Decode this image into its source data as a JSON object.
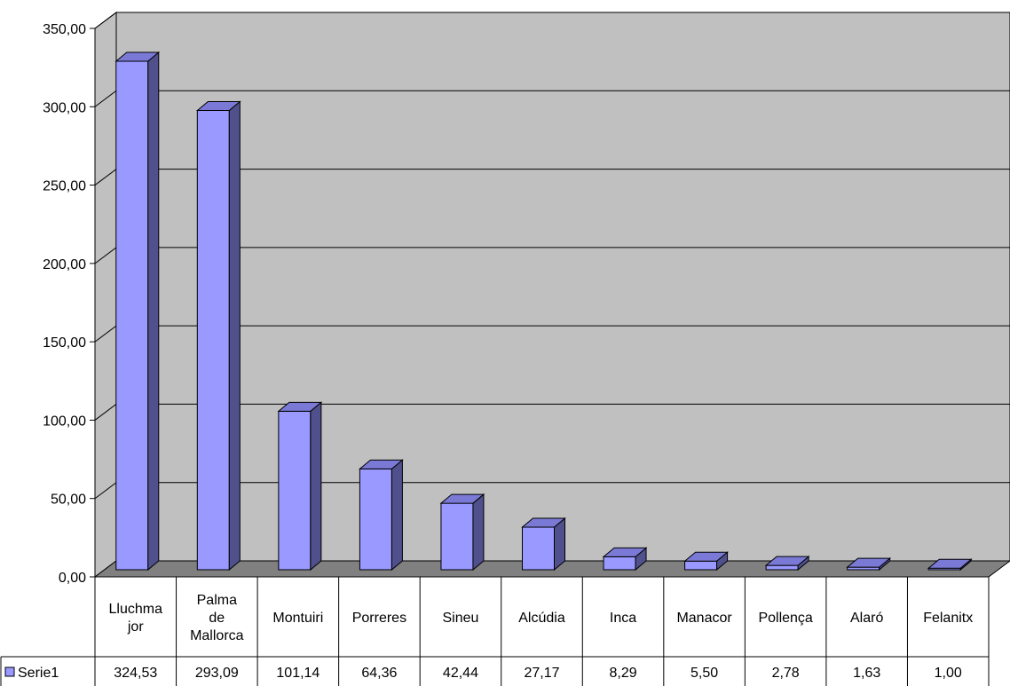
{
  "chart_data": {
    "type": "bar",
    "style": "3d-column",
    "categories": [
      [
        "Lluchma",
        "jor"
      ],
      [
        "Palma",
        "de",
        "Mallorca"
      ],
      [
        "Montuiri"
      ],
      [
        "Porreres"
      ],
      [
        "Sineu"
      ],
      [
        "Alcúdia"
      ],
      [
        "Inca"
      ],
      [
        "Manacor"
      ],
      [
        "Pollença"
      ],
      [
        "Alaró"
      ],
      [
        "Felanitx"
      ]
    ],
    "series": [
      {
        "name": "Serie1",
        "values": [
          324.53,
          293.09,
          101.14,
          64.36,
          42.44,
          27.17,
          8.29,
          5.5,
          2.78,
          1.63,
          1.0
        ],
        "value_labels": [
          "324,53",
          "293,09",
          "101,14",
          "64,36",
          "42,44",
          "27,17",
          "8,29",
          "5,50",
          "2,78",
          "1,63",
          "1,00"
        ]
      }
    ],
    "yticks": [
      "0,00",
      "50,00",
      "100,00",
      "150,00",
      "200,00",
      "250,00",
      "300,00",
      "350,00"
    ],
    "ylim": [
      0,
      350
    ],
    "grid": true,
    "data_table": true,
    "colors": {
      "bar_front": "#9999ff",
      "bar_side": "#50508c",
      "bar_top": "#7a7ad6",
      "wall": "#c0c0c0",
      "floor": "#808080",
      "grid": "#000000"
    }
  }
}
